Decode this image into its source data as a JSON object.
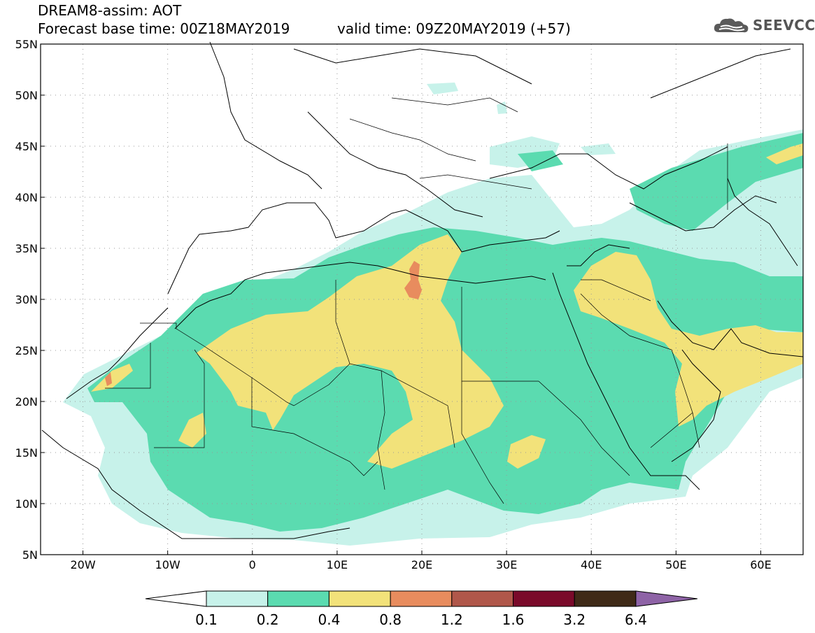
{
  "header": {
    "model_line": "DREAM8-assim: AOT",
    "base_line": "Forecast base time: 00Z18MAY2019",
    "valid_line": "valid time: 09Z20MAY2019 (+57)"
  },
  "logo": {
    "text": "SEEVCCC",
    "icon": "cloud-icon"
  },
  "map": {
    "projection": "equirectangular",
    "lon_range": [
      -25,
      65
    ],
    "lat_range": [
      5,
      55
    ],
    "lon_ticks": [
      {
        "value": -20,
        "label": "20W"
      },
      {
        "value": -10,
        "label": "10W"
      },
      {
        "value": 0,
        "label": "0"
      },
      {
        "value": 10,
        "label": "10E"
      },
      {
        "value": 20,
        "label": "20E"
      },
      {
        "value": 30,
        "label": "30E"
      },
      {
        "value": 40,
        "label": "40E"
      },
      {
        "value": 50,
        "label": "50E"
      },
      {
        "value": 60,
        "label": "60E"
      }
    ],
    "lat_ticks": [
      {
        "value": 55,
        "label": "55N"
      },
      {
        "value": 50,
        "label": "50N"
      },
      {
        "value": 45,
        "label": "45N"
      },
      {
        "value": 40,
        "label": "40N"
      },
      {
        "value": 35,
        "label": "35N"
      },
      {
        "value": 30,
        "label": "30N"
      },
      {
        "value": 25,
        "label": "25N"
      },
      {
        "value": 20,
        "label": "20N"
      },
      {
        "value": 15,
        "label": "15N"
      },
      {
        "value": 10,
        "label": "10N"
      },
      {
        "value": 5,
        "label": "5N"
      }
    ],
    "grid": "dotted"
  },
  "colorbar": {
    "labels": [
      "0.1",
      "0.2",
      "0.4",
      "0.8",
      "1.2",
      "1.6",
      "3.2",
      "6.4"
    ],
    "colors": [
      "#c7f2ea",
      "#5bdbb0",
      "#f2e27a",
      "#e88c5e",
      "#b0574a",
      "#7a0a2a",
      "#3f2a17",
      "#8e63a6"
    ],
    "below_color": "#ffffff"
  },
  "field": {
    "colors": {
      "l1": "#c7f2ea",
      "l2": "#5bdbb0",
      "l3": "#f2e27a",
      "l4": "#e88c5e"
    }
  }
}
